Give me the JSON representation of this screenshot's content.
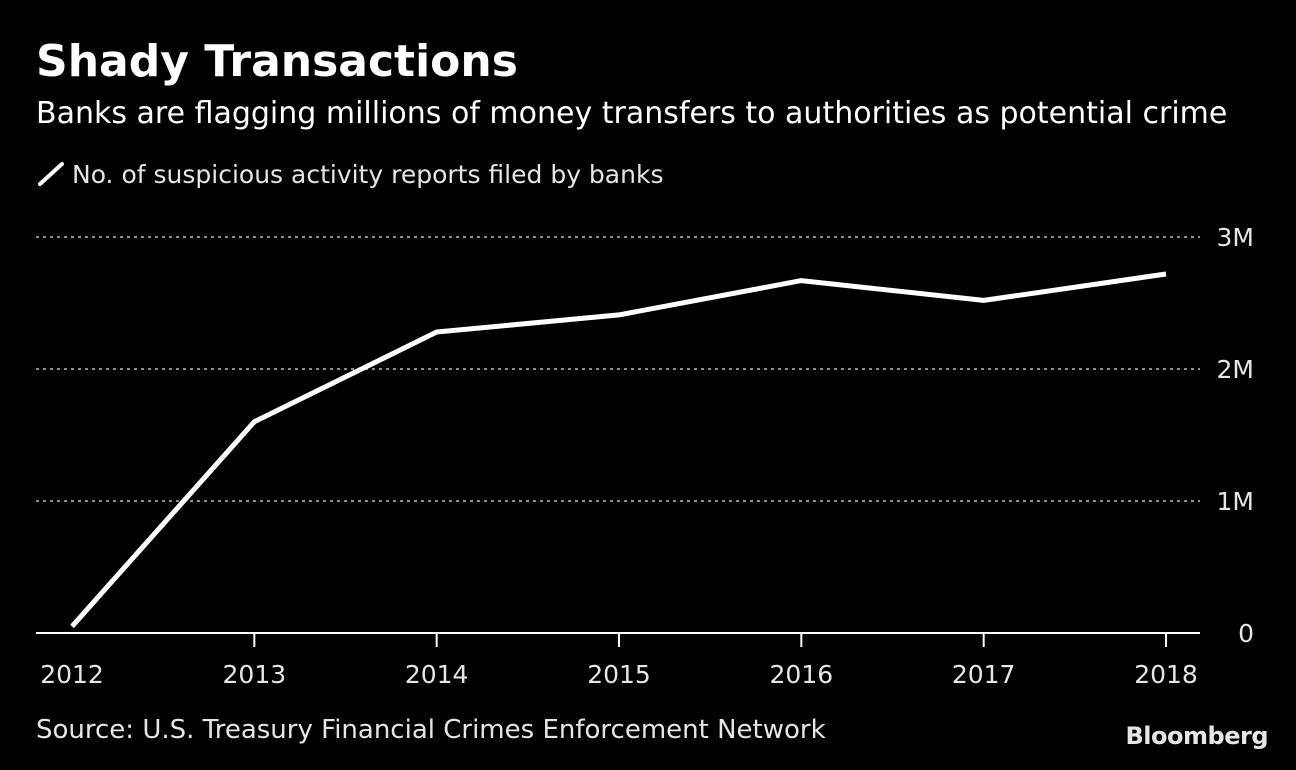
{
  "title": "Shady Transactions",
  "subtitle": "Banks are flagging millions of money transfers to authorities as potential crime",
  "legend": {
    "label": "No. of suspicious activity reports filed by banks",
    "icon": "line-swatch-icon"
  },
  "source": "Source: U.S. Treasury Financial Crimes Enforcement Network",
  "brand": "Bloomberg",
  "colors": {
    "background": "#000000",
    "line": "#ffffff",
    "grid": "#8c8c8c",
    "text": "#e6e6e6"
  },
  "chart_data": {
    "type": "line",
    "title": "Shady Transactions",
    "subtitle": "Banks are flagging millions of money transfers to authorities as potential crime",
    "categories": [
      "2012",
      "2013",
      "2014",
      "2015",
      "2016",
      "2017",
      "2018"
    ],
    "series": [
      {
        "name": "No. of suspicious activity reports filed by banks",
        "x": [
          2012.0,
          2013.0,
          2014.0,
          2015.0,
          2016.0,
          2017.0,
          2018.0
        ],
        "values": [
          50000,
          1600000,
          2280000,
          2410000,
          2670000,
          2520000,
          2720000
        ]
      }
    ],
    "y_ticks": [
      {
        "value": 0,
        "label": "0"
      },
      {
        "value": 1000000,
        "label": "1M"
      },
      {
        "value": 2000000,
        "label": "2M"
      },
      {
        "value": 3000000,
        "label": "3M"
      }
    ],
    "ylim": [
      0,
      3000000
    ],
    "xlim": [
      2012,
      2018
    ],
    "y_axis_side": "right",
    "grid": "horizontal-dotted",
    "legend_position": "top-left"
  }
}
